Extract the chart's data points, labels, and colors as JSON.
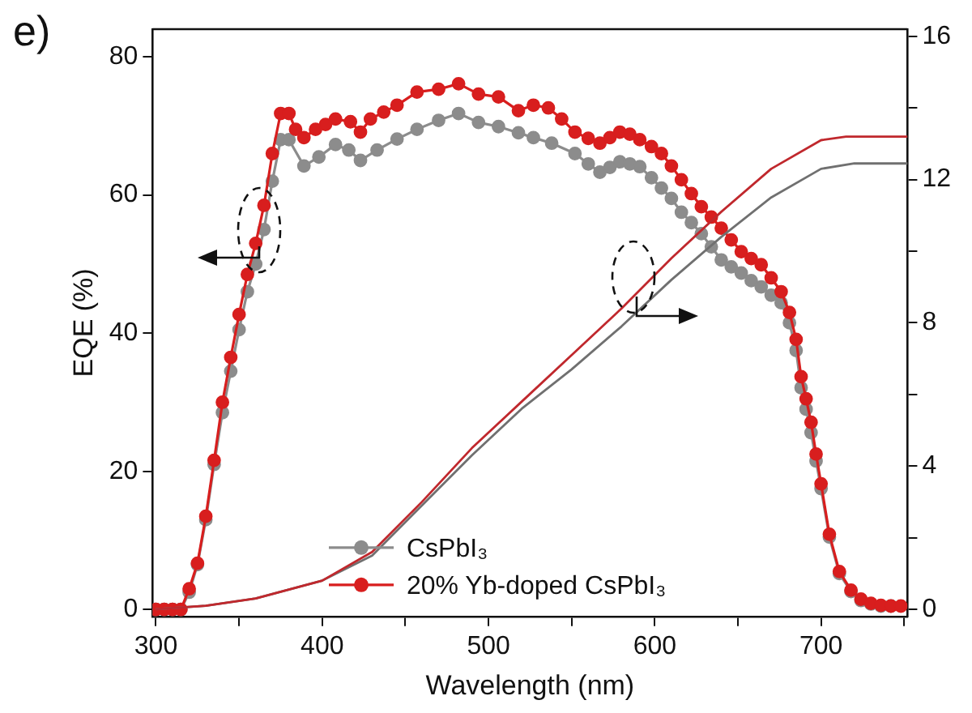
{
  "chart_data": {
    "type": "line",
    "title": "e)",
    "xlabel": "Wavelength (nm)",
    "ylabel": "EQE (%)",
    "xlim": [
      298,
      752
    ],
    "xticks": [
      300,
      {
        "value": 350,
        "label": null
      },
      400,
      {
        "value": 450,
        "label": null
      },
      500,
      {
        "value": 550,
        "label": null
      },
      600,
      {
        "value": 650,
        "label": null
      },
      700,
      {
        "value": 750,
        "label": null
      }
    ],
    "ylim": [
      -1,
      84
    ],
    "yticks": [
      0,
      20,
      40,
      60,
      80
    ],
    "y2lim": [
      -0.2,
      16.2
    ],
    "y2ticks": [
      0,
      {
        "value": 2,
        "label": null
      },
      4,
      {
        "value": 6,
        "label": null
      },
      8,
      {
        "value": 10,
        "label": null
      },
      12,
      {
        "value": 14,
        "label": null
      },
      16
    ],
    "grid": false,
    "legend": "bottom",
    "series": [
      {
        "name": "CsPbI₃",
        "color": "#8c8c8c",
        "marker": "circle",
        "x": [
          300,
          305,
          310,
          315,
          320,
          325,
          330,
          335,
          340,
          345,
          350,
          355,
          360,
          365,
          370,
          375,
          380,
          389,
          398,
          408,
          416,
          423,
          433,
          445,
          457,
          470,
          482,
          494,
          506,
          518,
          527,
          538,
          552,
          560,
          567,
          573,
          579,
          585,
          591,
          598,
          604,
          610,
          616,
          622,
          628,
          634,
          640,
          646,
          652,
          658,
          664,
          670,
          676,
          681,
          685,
          688,
          691,
          694,
          697,
          700,
          705,
          711,
          718,
          724,
          730,
          736,
          742
        ],
        "values": [
          0,
          0,
          0,
          0,
          2.5,
          6.5,
          13,
          21,
          28.5,
          34.5,
          40.5,
          46,
          50,
          55,
          62,
          68,
          68,
          64.2,
          65.5,
          67.3,
          66.5,
          65,
          66.5,
          68.1,
          69.5,
          70.8,
          71.8,
          70.5,
          69.9,
          69,
          68.3,
          67.5,
          66,
          64.5,
          63.3,
          64,
          64.8,
          64.5,
          64.1,
          62.5,
          61,
          59.5,
          57.5,
          56,
          54.4,
          52.5,
          50.6,
          49.6,
          48.7,
          47.6,
          46.7,
          45.5,
          44.4,
          41.5,
          37.5,
          32.1,
          29,
          25.6,
          21.5,
          17.5,
          10.5,
          5.2,
          2.6,
          1.3,
          0.8,
          0.5,
          0.5
        ]
      },
      {
        "name": "20% Yb-doped CsPbI₃",
        "color": "#d81e1e",
        "marker": "circle",
        "x": [
          300,
          305,
          310,
          315,
          320,
          325,
          330,
          335,
          340,
          345,
          350,
          355,
          360,
          365,
          370,
          375,
          380,
          384,
          389,
          396,
          402,
          408,
          417,
          423,
          429,
          437,
          445,
          457,
          470,
          482,
          494,
          506,
          518,
          527,
          536,
          544,
          552,
          560,
          567,
          573,
          579,
          585,
          591,
          598,
          604,
          610,
          616,
          622,
          628,
          634,
          640,
          646,
          652,
          658,
          664,
          670,
          676,
          681,
          685,
          688,
          691,
          694,
          697,
          700,
          705,
          711,
          718,
          724,
          730,
          736,
          742,
          748
        ],
        "values": [
          0,
          0,
          0,
          0,
          3,
          6.7,
          13.5,
          21.6,
          30,
          36.5,
          42.7,
          48.5,
          53,
          58.5,
          66,
          71.8,
          71.8,
          69.5,
          68.3,
          69.5,
          70.2,
          71,
          70.6,
          69.1,
          71,
          72,
          73,
          74.9,
          75.3,
          76.1,
          74.6,
          74.2,
          72.2,
          73,
          72.6,
          71,
          69.1,
          68.2,
          67.5,
          68.3,
          69.1,
          68.8,
          68,
          67,
          66,
          64.2,
          62.2,
          60.2,
          58.3,
          56.8,
          55.2,
          53.5,
          51.8,
          50.8,
          49.9,
          48,
          46,
          43,
          39.1,
          33.7,
          30.5,
          27.1,
          22.5,
          18.2,
          10.9,
          5.5,
          2.8,
          1.5,
          0.9,
          0.6,
          0.5,
          0.5
        ]
      },
      {
        "color": "#707070",
        "marker": "none",
        "axis": "y2",
        "x": [
          300,
          330,
          360,
          400,
          430,
          460,
          490,
          520,
          550,
          580,
          610,
          640,
          670,
          700,
          720,
          752
        ],
        "values": [
          0,
          0.1,
          0.3,
          0.8,
          1.5,
          2.9,
          4.3,
          5.6,
          6.7,
          7.9,
          9.2,
          10.4,
          11.5,
          12.3,
          12.45,
          12.45
        ]
      },
      {
        "color": "#c0282d",
        "marker": "none",
        "axis": "y2",
        "x": [
          300,
          330,
          360,
          400,
          430,
          460,
          490,
          520,
          550,
          580,
          610,
          640,
          670,
          700,
          715,
          752
        ],
        "values": [
          0,
          0.1,
          0.3,
          0.8,
          1.6,
          3.0,
          4.5,
          5.8,
          7.1,
          8.4,
          9.8,
          11.1,
          12.3,
          13.1,
          13.2,
          13.2
        ]
      }
    ]
  }
}
